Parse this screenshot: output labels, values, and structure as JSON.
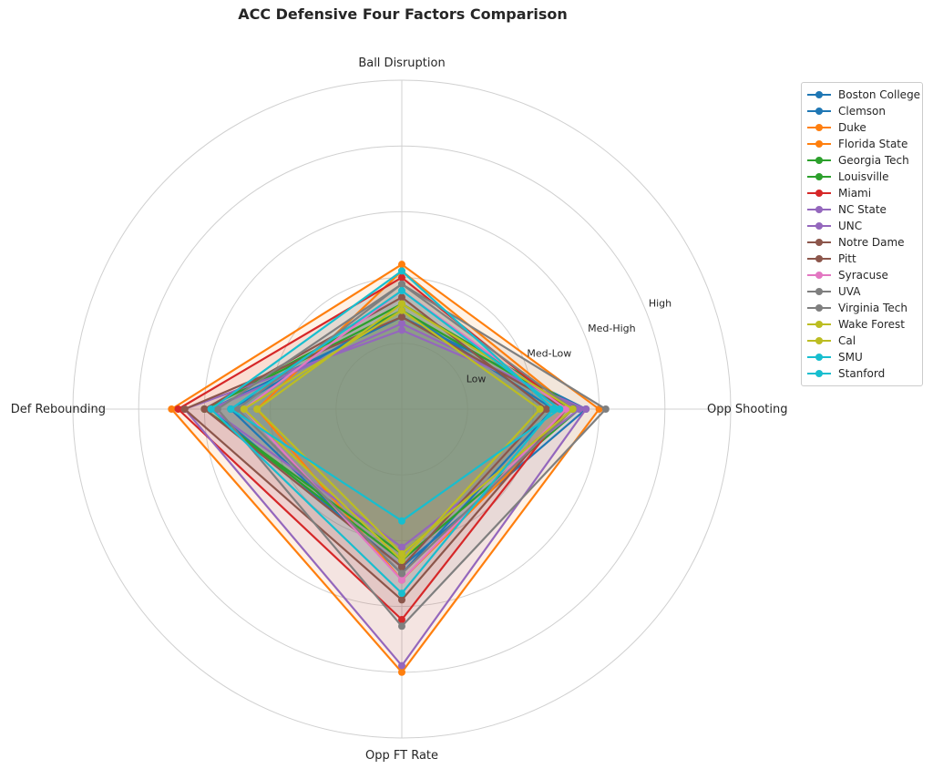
{
  "chart_data": {
    "type": "radar",
    "title": "ACC Defensive Four Factors Comparison",
    "axes": [
      "Ball Disruption",
      "Opp Shooting",
      "Opp FT Rate",
      "Def Rebounding"
    ],
    "rlim": [
      0,
      5
    ],
    "ring_labels": [
      "Low",
      "Med-Low",
      "Med-High",
      "High"
    ],
    "ring_values": [
      1,
      2,
      3,
      4
    ],
    "grid": true,
    "legend_position": "top-right outside",
    "series": [
      {
        "name": "Boston College",
        "color": "#1f77b4",
        "values": [
          1.5,
          2.3,
          2.5,
          2.6
        ]
      },
      {
        "name": "Clemson",
        "color": "#1f77b4",
        "values": [
          1.4,
          2.8,
          2.4,
          2.9
        ]
      },
      {
        "name": "Duke",
        "color": "#ff7f0e",
        "values": [
          2.2,
          3.0,
          4.0,
          3.5
        ]
      },
      {
        "name": "Florida State",
        "color": "#ff7f0e",
        "values": [
          2.1,
          2.6,
          2.6,
          2.2
        ]
      },
      {
        "name": "Georgia Tech",
        "color": "#2ca02c",
        "values": [
          1.6,
          2.7,
          2.3,
          3.0
        ]
      },
      {
        "name": "Louisville",
        "color": "#2ca02c",
        "values": [
          1.5,
          2.6,
          2.2,
          3.0
        ]
      },
      {
        "name": "Miami",
        "color": "#d62728",
        "values": [
          2.0,
          2.5,
          3.2,
          3.4
        ]
      },
      {
        "name": "NC State",
        "color": "#9467bd",
        "values": [
          1.3,
          2.7,
          2.1,
          2.9
        ]
      },
      {
        "name": "UNC",
        "color": "#9467bd",
        "values": [
          1.2,
          2.8,
          3.9,
          3.3
        ]
      },
      {
        "name": "Notre Dame",
        "color": "#8c564b",
        "values": [
          1.7,
          2.2,
          2.4,
          3.0
        ]
      },
      {
        "name": "Pitt",
        "color": "#8c564b",
        "values": [
          1.4,
          2.5,
          2.9,
          3.3
        ]
      },
      {
        "name": "Syracuse",
        "color": "#e377c2",
        "values": [
          1.8,
          2.5,
          2.6,
          2.4
        ]
      },
      {
        "name": "UVA",
        "color": "#7f7f7f",
        "values": [
          1.9,
          3.1,
          3.3,
          2.8
        ]
      },
      {
        "name": "Virginia Tech",
        "color": "#7f7f7f",
        "values": [
          1.9,
          2.6,
          2.5,
          2.5
        ]
      },
      {
        "name": "Wake Forest",
        "color": "#bcbd22",
        "values": [
          1.6,
          2.6,
          2.2,
          2.2
        ]
      },
      {
        "name": "Cal",
        "color": "#bcbd22",
        "values": [
          1.5,
          2.1,
          2.3,
          2.4
        ]
      },
      {
        "name": "SMU",
        "color": "#17becf",
        "values": [
          2.1,
          2.3,
          2.8,
          2.9
        ]
      },
      {
        "name": "Stanford",
        "color": "#17becf",
        "values": [
          1.8,
          2.4,
          1.7,
          2.6
        ]
      }
    ]
  }
}
